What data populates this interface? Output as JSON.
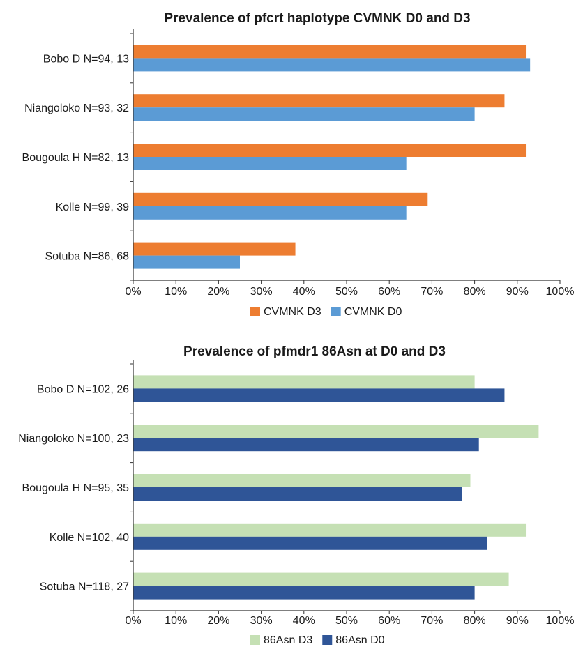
{
  "chart_data": [
    {
      "type": "bar",
      "orientation": "horizontal",
      "title": "Prevalence of pfcrt  haplotype CVMNK D0 and D3",
      "categories": [
        "Bobo D N=94, 13",
        "Niangoloko N=93, 32",
        "Bougoula H N=82, 13",
        "Kolle N=99, 39",
        "Sotuba N=86, 68"
      ],
      "series": [
        {
          "name": "CVMNK D3",
          "color": "#ED7D31",
          "values": [
            92,
            87,
            92,
            69,
            38
          ]
        },
        {
          "name": "CVMNK D0",
          "color": "#5B9BD5",
          "values": [
            93,
            80,
            64,
            64,
            25
          ]
        }
      ],
      "xlim": [
        0,
        100
      ],
      "xticks": [
        "0%",
        "10%",
        "20%",
        "30%",
        "40%",
        "50%",
        "60%",
        "70%",
        "80%",
        "90%",
        "100%"
      ],
      "grid": false,
      "legend": "bottom"
    },
    {
      "type": "bar",
      "orientation": "horizontal",
      "title": "Prevalence of pfmdr1 86Asn at D0 and D3",
      "categories": [
        "Bobo D N=102, 26",
        "Niangoloko N=100, 23",
        "Bougoula H N=95, 35",
        "Kolle N=102, 40",
        "Sotuba N=118, 27"
      ],
      "series": [
        {
          "name": "86Asn D3",
          "color": "#C5E0B4",
          "values": [
            80,
            95,
            79,
            92,
            88
          ]
        },
        {
          "name": "86Asn D0",
          "color": "#2F5597",
          "values": [
            87,
            81,
            77,
            83,
            80
          ]
        }
      ],
      "xlim": [
        0,
        100
      ],
      "xticks": [
        "0%",
        "10%",
        "20%",
        "30%",
        "40%",
        "50%",
        "60%",
        "70%",
        "80%",
        "90%",
        "100%"
      ],
      "grid": false,
      "legend": "bottom"
    }
  ]
}
